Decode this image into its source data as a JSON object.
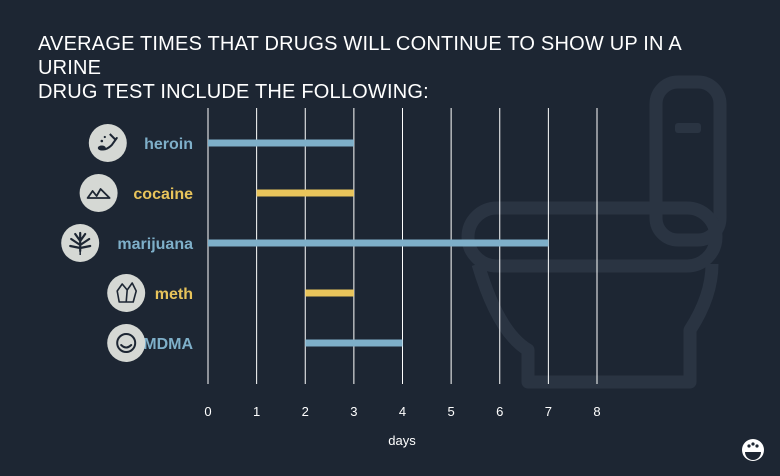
{
  "title_lines": [
    "AVERAGE TIMES THAT DRUGS WILL CONTINUE TO SHOW UP IN A URINE",
    "DRUG TEST INCLUDE THE FOLLOWING:"
  ],
  "colors": {
    "background": "#1d2633",
    "blue": "#7eafc9",
    "yellow": "#e8c45b",
    "grid": "#ffffff",
    "icon_circle": "#d5d8d4",
    "watermark": "#2a3442"
  },
  "chart_data": {
    "type": "bar",
    "orientation": "horizontal-range",
    "title": "AVERAGE TIMES THAT DRUGS WILL CONTINUE TO SHOW UP IN A URINE DRUG TEST INCLUDE THE FOLLOWING:",
    "xlabel": "days",
    "ylabel": "",
    "xlim": [
      0,
      8
    ],
    "xticks": [
      "0",
      "1",
      "2",
      "3",
      "4",
      "5",
      "6",
      "7",
      "8"
    ],
    "grid": true,
    "categories": [
      {
        "label": "heroin",
        "start": 0,
        "end": 3,
        "color": "blue",
        "icon": "spoon-icon"
      },
      {
        "label": "cocaine",
        "start": 1,
        "end": 3,
        "color": "yellow",
        "icon": "powder-icon"
      },
      {
        "label": "marijuana",
        "start": 0,
        "end": 7,
        "color": "blue",
        "icon": "cannabis-leaf-icon"
      },
      {
        "label": "meth",
        "start": 2,
        "end": 3,
        "color": "yellow",
        "icon": "crystal-icon"
      },
      {
        "label": "MDMA",
        "start": 2,
        "end": 4,
        "color": "blue",
        "icon": "pill-icon"
      }
    ]
  }
}
